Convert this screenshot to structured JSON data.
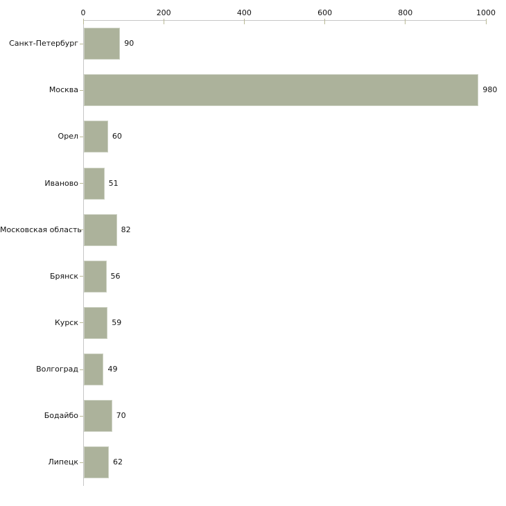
{
  "chart_data": {
    "type": "bar",
    "orientation": "horizontal",
    "title": "",
    "xlabel": "",
    "ylabel": "",
    "categories": [
      "Санкт-Петербург",
      "Москва",
      "Орел",
      "Иваново",
      "Московская область",
      "Брянск",
      "Курск",
      "Волгоград",
      "Бодайбо",
      "Липецк"
    ],
    "values": [
      90,
      980,
      60,
      51,
      82,
      56,
      59,
      49,
      70,
      62
    ],
    "xlim": [
      0,
      1000
    ],
    "x_ticks": [
      0,
      200,
      400,
      600,
      800,
      1000
    ],
    "x_tick_labels": [
      "0",
      "200",
      "400",
      "600",
      "800",
      "1000"
    ],
    "grid": false,
    "legend": "none",
    "bar_value_labels_shown": true,
    "colors": {
      "bar_fill": "#acb29b",
      "bar_border": "#ccd1c2",
      "axis_line": "#c6c6c6",
      "tick_mark": "#b9b995",
      "text": "#111111",
      "background": "#ffffff"
    }
  }
}
